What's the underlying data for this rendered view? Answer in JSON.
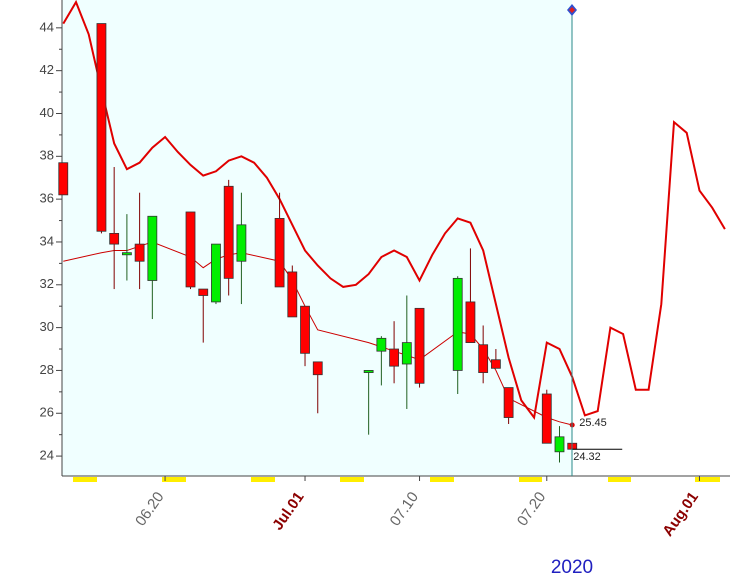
{
  "chart_data": {
    "type": "candlestick",
    "xlim": [
      163.9,
      216.4
    ],
    "ylim": [
      23.07,
      45.3
    ],
    "yticks": [
      24,
      26,
      28,
      30,
      32,
      34,
      36,
      38,
      40,
      42,
      44
    ],
    "xticks": [
      {
        "value": 172,
        "label": "06.20",
        "color": "#666666"
      },
      {
        "value": 183,
        "label": "Jul.01",
        "color": "#8b0000"
      },
      {
        "value": 192,
        "label": "07.10",
        "color": "#666666"
      },
      {
        "value": 202,
        "label": "07.20",
        "color": "#666666"
      },
      {
        "value": 214,
        "label": "Aug.01",
        "color": "#8b0000"
      }
    ],
    "year_label": "2020",
    "up_color": "#00ee00",
    "down_color": "#ff0000",
    "x": [
      164,
      167,
      168,
      169,
      170,
      171,
      174,
      175,
      176,
      177,
      178,
      181,
      182,
      183,
      184,
      188,
      189,
      190,
      191,
      192,
      195,
      196,
      197,
      198,
      199,
      202,
      203,
      204
    ],
    "open": [
      37.7,
      44.2,
      34.4,
      33.4,
      33.9,
      32.2,
      35.4,
      31.8,
      31.2,
      36.6,
      33.1,
      35.1,
      32.6,
      31.0,
      28.4,
      27.9,
      28.9,
      29.0,
      28.3,
      30.9,
      28.0,
      31.2,
      29.2,
      28.5,
      27.2,
      26.9,
      24.2,
      24.6
    ],
    "high": [
      37.7,
      44.2,
      37.5,
      35.3,
      36.3,
      35.2,
      35.4,
      31.8,
      33.9,
      36.9,
      36.3,
      36.3,
      32.9,
      31.0,
      28.4,
      28.0,
      29.6,
      30.3,
      31.5,
      30.9,
      32.4,
      33.7,
      30.1,
      29.0,
      27.2,
      27.1,
      25.4,
      24.6
    ],
    "low": [
      36.2,
      34.4,
      31.8,
      32.2,
      31.8,
      30.4,
      31.8,
      29.3,
      31.1,
      31.5,
      31.1,
      31.9,
      30.5,
      28.2,
      26.0,
      25.0,
      27.3,
      27.4,
      26.2,
      27.2,
      26.9,
      29.3,
      27.4,
      28.1,
      25.5,
      24.6,
      23.7,
      24.32
    ],
    "close": [
      36.2,
      34.5,
      33.9,
      33.5,
      33.1,
      35.2,
      31.9,
      31.5,
      33.9,
      32.3,
      34.8,
      31.9,
      30.5,
      28.8,
      27.8,
      28.0,
      29.5,
      28.2,
      29.3,
      27.4,
      32.3,
      29.3,
      27.9,
      28.1,
      25.8,
      24.6,
      24.9,
      24.32
    ],
    "lines": [
      {
        "color": "#e00000",
        "width": 2,
        "x": [
          164,
          165,
          166,
          167,
          168,
          169,
          170,
          171,
          172,
          173,
          174,
          175,
          176,
          177,
          178,
          179,
          180,
          181,
          182,
          183,
          184,
          185,
          186,
          187,
          188,
          189,
          190,
          191,
          192,
          193,
          194,
          195,
          196,
          197,
          198,
          199,
          200,
          201,
          202,
          203,
          204,
          205,
          206,
          207,
          208,
          209,
          210,
          211,
          212,
          213,
          214,
          215,
          216
        ],
        "values": [
          44.2,
          45.2,
          43.7,
          41.1,
          38.6,
          37.4,
          37.7,
          38.4,
          38.9,
          38.2,
          37.6,
          37.1,
          37.3,
          37.8,
          38.0,
          37.7,
          37.0,
          36.0,
          34.8,
          33.6,
          32.9,
          32.3,
          31.9,
          32.0,
          32.5,
          33.3,
          33.6,
          33.3,
          32.2,
          33.4,
          34.4,
          35.1,
          34.9,
          33.6,
          31.1,
          28.6,
          26.6,
          25.8,
          29.3,
          29.0,
          27.7,
          25.9,
          26.1,
          30.0,
          29.7,
          27.1,
          27.1,
          31.1,
          39.6,
          39.1,
          36.4,
          35.6,
          34.6
        ]
      },
      {
        "color": "#cc0000",
        "width": 1,
        "x": [
          164,
          167,
          168,
          169,
          170,
          171,
          174,
          175,
          176,
          177,
          178,
          181,
          182,
          183,
          184,
          188,
          189,
          190,
          191,
          192,
          195,
          196,
          197,
          198,
          199,
          202,
          203,
          204
        ],
        "values": [
          33.1,
          33.5,
          33.6,
          33.6,
          33.8,
          34.0,
          33.3,
          32.8,
          33.2,
          33.4,
          33.5,
          33.1,
          32.2,
          31.0,
          29.9,
          29.3,
          29.1,
          28.9,
          28.7,
          28.5,
          29.8,
          29.7,
          29.0,
          28.0,
          26.7,
          25.8,
          25.6,
          25.45
        ]
      }
    ]
  }
}
